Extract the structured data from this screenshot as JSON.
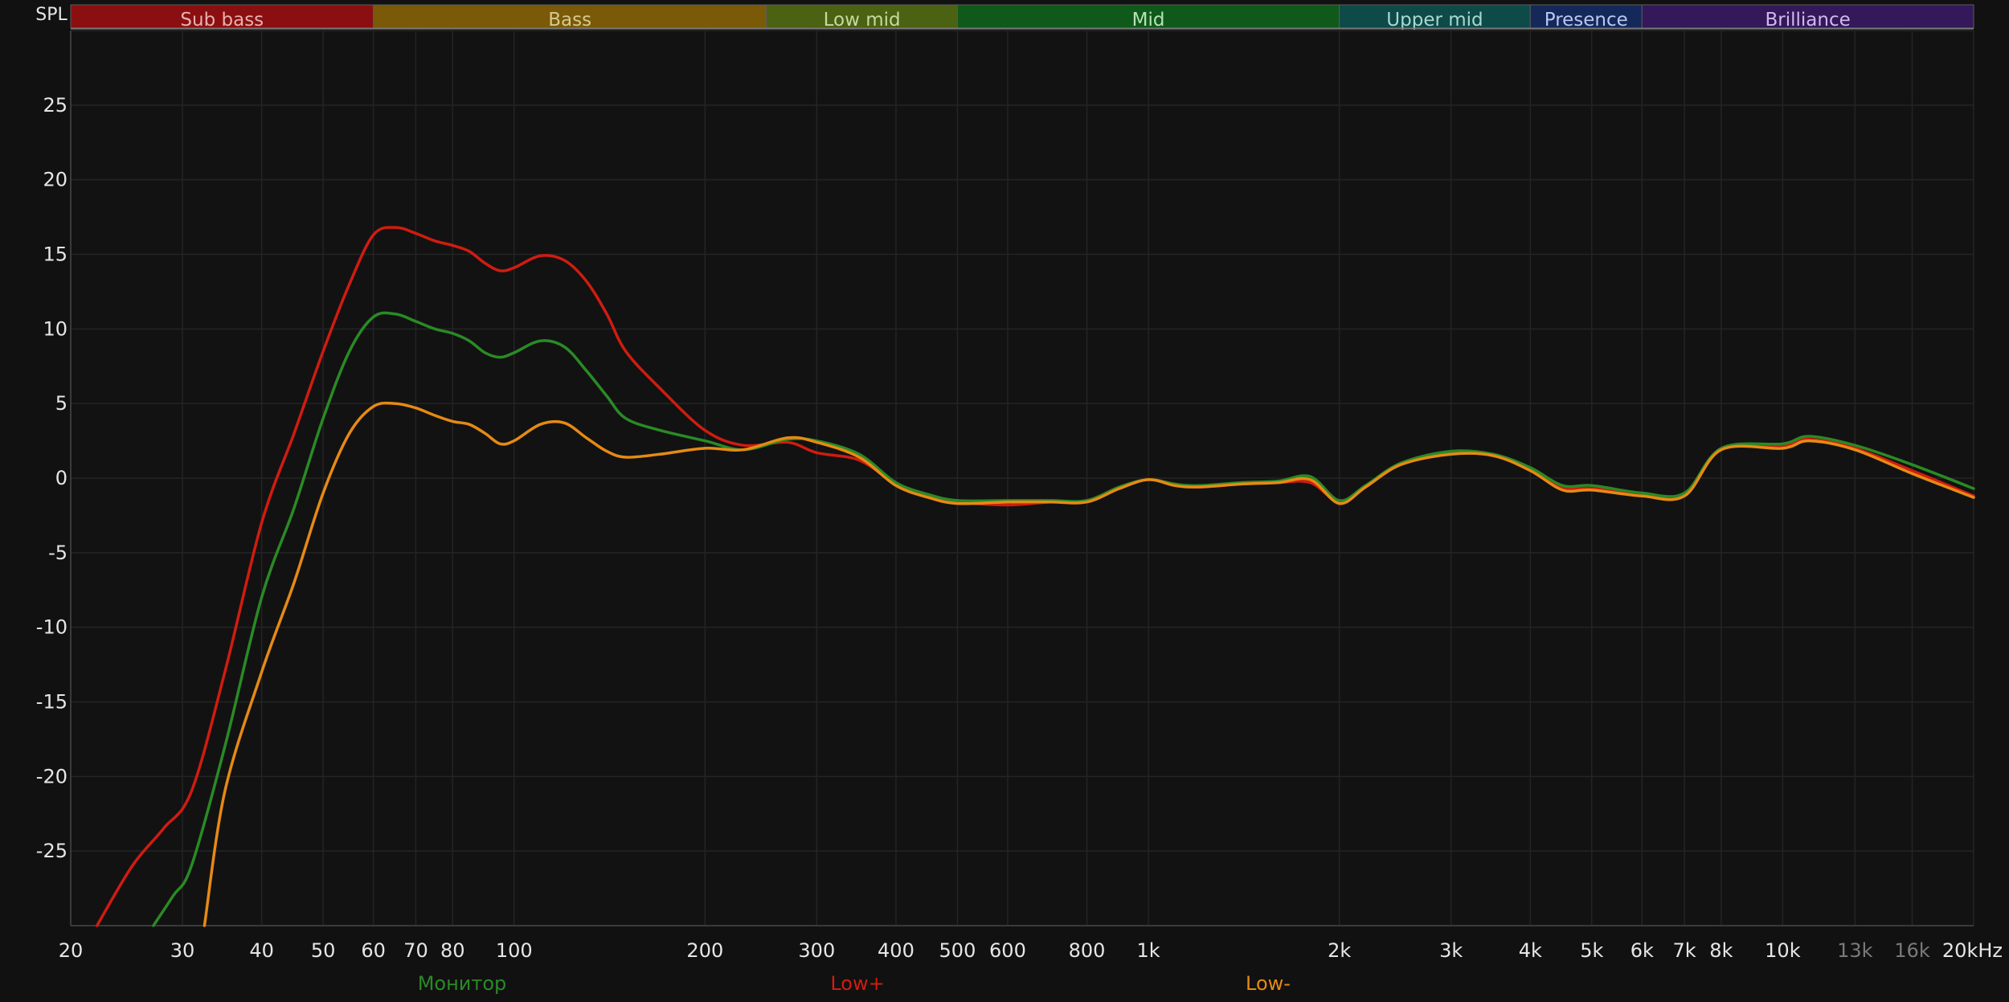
{
  "chart_data": {
    "type": "line",
    "ylabel": "SPL",
    "xscale": "log",
    "xlim": [
      20,
      20000
    ],
    "ylim": [
      -30,
      30
    ],
    "grid": true,
    "yticks": [
      {
        "value": 25,
        "label": "25"
      },
      {
        "value": 20,
        "label": "20"
      },
      {
        "value": 15,
        "label": "15"
      },
      {
        "value": 10,
        "label": "10"
      },
      {
        "value": 5,
        "label": "5"
      },
      {
        "value": 0,
        "label": "0"
      },
      {
        "value": -5,
        "label": "-5"
      },
      {
        "value": -10,
        "label": "-10"
      },
      {
        "value": -15,
        "label": "-15"
      },
      {
        "value": -20,
        "label": "-20"
      },
      {
        "value": -25,
        "label": "-25"
      }
    ],
    "xticks": [
      {
        "value": 20,
        "label": "20"
      },
      {
        "value": 30,
        "label": "30"
      },
      {
        "value": 40,
        "label": "40"
      },
      {
        "value": 50,
        "label": "50"
      },
      {
        "value": 60,
        "label": "60"
      },
      {
        "value": 70,
        "label": "70"
      },
      {
        "value": 80,
        "label": "80"
      },
      {
        "value": 100,
        "label": "100"
      },
      {
        "value": 200,
        "label": "200"
      },
      {
        "value": 300,
        "label": "300"
      },
      {
        "value": 400,
        "label": "400"
      },
      {
        "value": 500,
        "label": "500"
      },
      {
        "value": 600,
        "label": "600"
      },
      {
        "value": 800,
        "label": "800"
      },
      {
        "value": 1000,
        "label": "1k"
      },
      {
        "value": 2000,
        "label": "2k"
      },
      {
        "value": 3000,
        "label": "3k"
      },
      {
        "value": 4000,
        "label": "4k"
      },
      {
        "value": 5000,
        "label": "5k"
      },
      {
        "value": 6000,
        "label": "6k"
      },
      {
        "value": 7000,
        "label": "7k"
      },
      {
        "value": 8000,
        "label": "8k"
      },
      {
        "value": 10000,
        "label": "10k"
      },
      {
        "value": 13000,
        "label": "13k",
        "dim": true
      },
      {
        "value": 16000,
        "label": "16k",
        "dim": true
      },
      {
        "value": 20000,
        "label": "20kHz"
      }
    ],
    "bands": [
      {
        "name": "Sub bass",
        "from": 20,
        "to": 60,
        "color": "#8b0f10",
        "text": "#e8b0b0"
      },
      {
        "name": "Bass",
        "from": 60,
        "to": 250,
        "color": "#7a5a08",
        "text": "#d8c890"
      },
      {
        "name": "Low mid",
        "from": 250,
        "to": 500,
        "color": "#4a6212",
        "text": "#c8d8a0"
      },
      {
        "name": "Mid",
        "from": 500,
        "to": 2000,
        "color": "#0f5a1a",
        "text": "#b8e0b8"
      },
      {
        "name": "Upper mid",
        "from": 2000,
        "to": 4000,
        "color": "#0d4a48",
        "text": "#a8d8d0"
      },
      {
        "name": "Presence",
        "from": 4000,
        "to": 6000,
        "color": "#15285a",
        "text": "#b8c8f0"
      },
      {
        "name": "Brilliance",
        "from": 6000,
        "to": 20000,
        "color": "#33185a",
        "text": "#d0b8f0"
      }
    ],
    "series": [
      {
        "name": "Low+",
        "color": "#d01c10",
        "x": [
          22,
          25,
          28,
          31,
          35,
          40,
          45,
          50,
          55,
          60,
          65,
          70,
          75,
          80,
          85,
          90,
          95,
          100,
          110,
          120,
          130,
          140,
          150,
          170,
          200,
          230,
          270,
          300,
          350,
          400,
          450,
          500,
          600,
          700,
          800,
          900,
          1000,
          1100,
          1200,
          1400,
          1600,
          1800,
          2000,
          2200,
          2500,
          3000,
          3500,
          4000,
          4500,
          5000,
          6000,
          7000,
          8000,
          10000,
          11000,
          13000,
          16000,
          20000
        ],
        "y": [
          -30,
          -26,
          -23.5,
          -21,
          -13,
          -3,
          3,
          8.5,
          13,
          16.3,
          16.8,
          16.4,
          15.9,
          15.6,
          15.2,
          14.4,
          13.9,
          14.1,
          14.9,
          14.6,
          13.2,
          11,
          8.5,
          6,
          3.2,
          2.2,
          2.4,
          1.7,
          1.2,
          -0.4,
          -1.2,
          -1.6,
          -1.8,
          -1.6,
          -1.5,
          -0.6,
          -0.1,
          -0.4,
          -0.6,
          -0.4,
          -0.3,
          -0.3,
          -1.6,
          -0.6,
          1,
          1.7,
          1.5,
          0.6,
          -0.6,
          -0.7,
          -1,
          -1.1,
          2,
          2.2,
          2.6,
          2,
          0.5,
          -1.2
        ]
      },
      {
        "name": "Монитор",
        "color": "#2a8a25",
        "x": [
          27,
          29,
          31,
          35,
          40,
          45,
          50,
          55,
          60,
          65,
          70,
          75,
          80,
          85,
          90,
          95,
          100,
          110,
          120,
          130,
          140,
          150,
          170,
          200,
          230,
          270,
          300,
          350,
          400,
          450,
          500,
          600,
          700,
          800,
          900,
          1000,
          1100,
          1200,
          1400,
          1600,
          1800,
          2000,
          2200,
          2500,
          3000,
          3500,
          4000,
          4500,
          5000,
          6000,
          7000,
          8000,
          10000,
          11000,
          13000,
          16000,
          20000
        ],
        "y": [
          -30,
          -28,
          -26,
          -18,
          -8,
          -2,
          4,
          8.5,
          10.8,
          11,
          10.5,
          10,
          9.7,
          9.2,
          8.4,
          8.1,
          8.4,
          9.2,
          8.8,
          7.2,
          5.5,
          4,
          3.2,
          2.5,
          1.9,
          2.6,
          2.5,
          1.6,
          -0.3,
          -1.1,
          -1.5,
          -1.5,
          -1.5,
          -1.5,
          -0.6,
          -0.1,
          -0.4,
          -0.5,
          -0.3,
          -0.2,
          0.1,
          -1.5,
          -0.5,
          1,
          1.8,
          1.6,
          0.7,
          -0.5,
          -0.5,
          -1,
          -1,
          2,
          2.3,
          2.8,
          2.2,
          0.9,
          -0.7
        ]
      },
      {
        "name": "Low-",
        "color": "#e68a14",
        "x": [
          32.5,
          35,
          40,
          45,
          50,
          55,
          60,
          65,
          70,
          75,
          80,
          85,
          90,
          95,
          100,
          110,
          120,
          130,
          140,
          150,
          170,
          200,
          230,
          270,
          300,
          350,
          400,
          450,
          500,
          600,
          700,
          800,
          900,
          1000,
          1100,
          1200,
          1400,
          1600,
          1800,
          2000,
          2200,
          2500,
          3000,
          3500,
          4000,
          4500,
          5000,
          6000,
          7000,
          8000,
          10000,
          11000,
          13000,
          16000,
          20000
        ],
        "y": [
          -30,
          -21,
          -13,
          -7,
          -1,
          3,
          4.8,
          5,
          4.7,
          4.2,
          3.8,
          3.6,
          3,
          2.3,
          2.5,
          3.6,
          3.7,
          2.7,
          1.8,
          1.4,
          1.6,
          2,
          1.9,
          2.7,
          2.4,
          1.4,
          -0.5,
          -1.3,
          -1.7,
          -1.6,
          -1.6,
          -1.6,
          -0.7,
          -0.1,
          -0.5,
          -0.6,
          -0.4,
          -0.3,
          -0.1,
          -1.7,
          -0.6,
          0.9,
          1.6,
          1.5,
          0.5,
          -0.8,
          -0.8,
          -1.2,
          -1.2,
          1.9,
          2,
          2.5,
          1.9,
          0.3,
          -1.3
        ]
      }
    ],
    "legend": [
      {
        "label": "Монитор",
        "color": "#2a8a25"
      },
      {
        "label": "Low+",
        "color": "#d01c10"
      },
      {
        "label": "Low-",
        "color": "#e68a14"
      }
    ],
    "legend_position": "bottom"
  }
}
